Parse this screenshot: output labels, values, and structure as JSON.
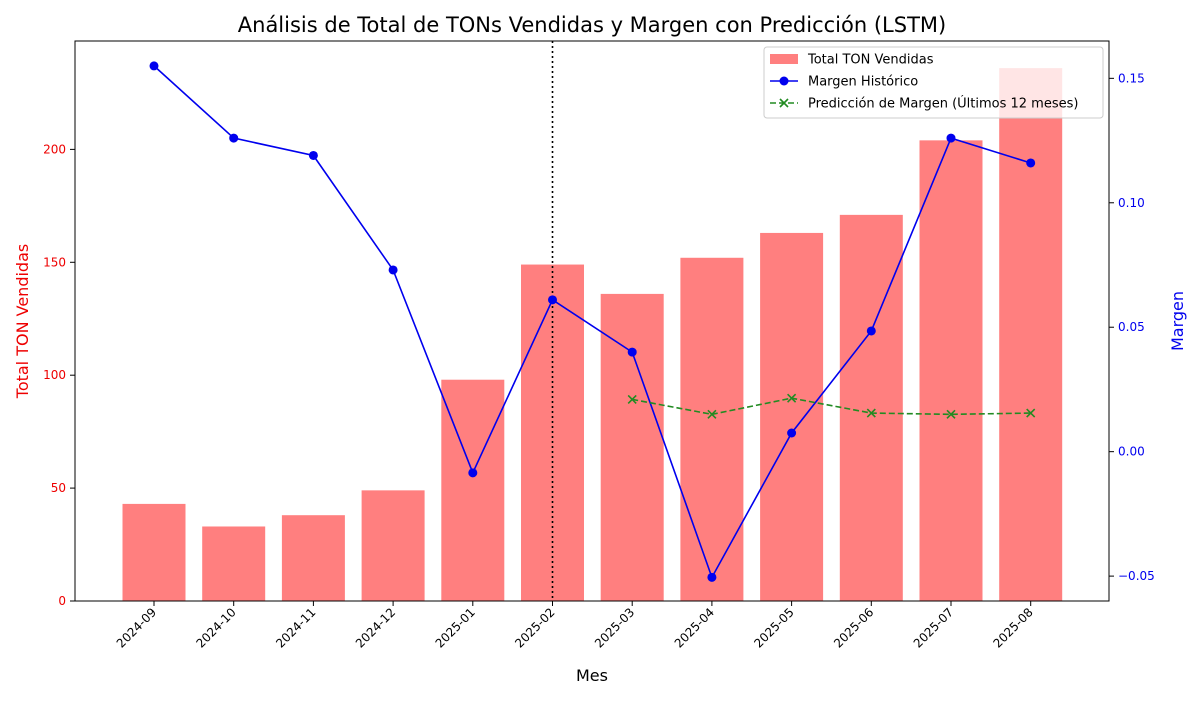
{
  "chart_data": {
    "type": "bar",
    "title": "Análisis de Total de TONs Vendidas y Margen con Predicción (LSTM)",
    "xlabel": "Mes",
    "ylabel_left": "Total TON Vendidas",
    "ylabel_right": "Margen",
    "categories": [
      "2024-09",
      "2024-10",
      "2024-11",
      "2024-12",
      "2025-01",
      "2025-02",
      "2025-03",
      "2025-04",
      "2025-05",
      "2025-06",
      "2025-07",
      "2025-08"
    ],
    "ylim_left": [
      0,
      248
    ],
    "ylim_right": [
      -0.06,
      0.165
    ],
    "yticks_left": [
      "0",
      "50",
      "100",
      "150",
      "200"
    ],
    "yticks_right": [
      "−0.05",
      "0.00",
      "0.05",
      "0.10",
      "0.15"
    ],
    "split_category": "2025-02",
    "legend_position": "top-right",
    "colors": {
      "bars": "#ff7f7f",
      "historic": "#0000ee",
      "prediction": "#228b22",
      "left_axis": "#ee0000",
      "right_axis": "#0000ee"
    },
    "series": [
      {
        "name": "Total TON Vendidas",
        "kind": "bar",
        "axis": "left",
        "values": [
          43,
          33,
          38,
          49,
          98,
          149,
          136,
          152,
          163,
          171,
          204,
          236
        ]
      },
      {
        "name": "Margen Histórico",
        "kind": "line",
        "axis": "right",
        "marker": "circle",
        "values": [
          0.155,
          0.126,
          0.119,
          0.073,
          -0.0085,
          0.061,
          0.04,
          -0.0505,
          0.0075,
          0.0485,
          0.126,
          0.116
        ]
      },
      {
        "name": "Predicción de Margen (Últimos 12 meses)",
        "kind": "line",
        "axis": "right",
        "marker": "x",
        "dashed": true,
        "values": [
          null,
          null,
          null,
          null,
          null,
          null,
          0.021,
          0.015,
          0.0215,
          0.0155,
          0.015,
          0.0155
        ]
      }
    ]
  }
}
